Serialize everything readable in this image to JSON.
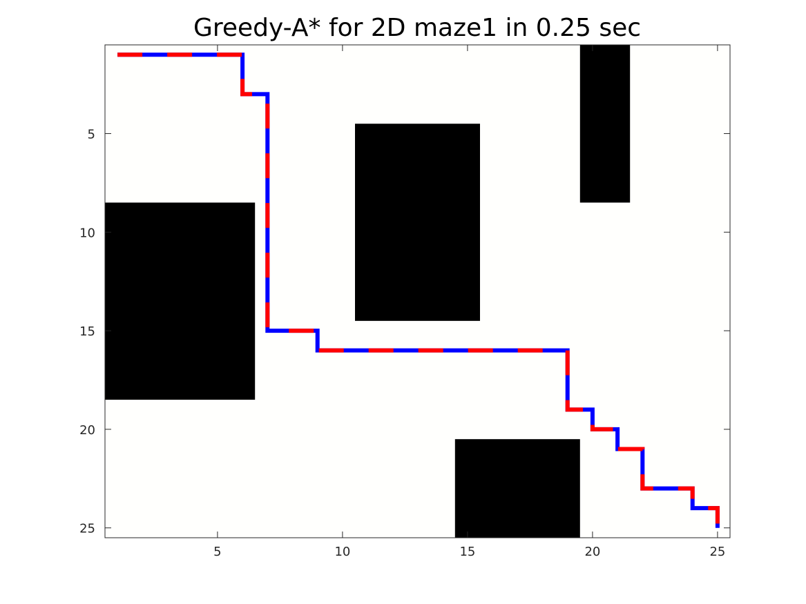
{
  "chart_data": {
    "type": "heatmap",
    "title": "Greedy-A* for 2D maze1 in 0.25 sec",
    "xlabel": "",
    "ylabel": "",
    "xlim": [
      0.5,
      25.5
    ],
    "ylim": [
      0.5,
      25.5
    ],
    "y_reversed": true,
    "grid": false,
    "xticks": [
      5,
      10,
      15,
      20,
      25
    ],
    "yticks": [
      5,
      10,
      15,
      20,
      25
    ],
    "background_color": "#fffffd",
    "obstacle_color": "#000000",
    "obstacles": [
      {
        "x_from": 1,
        "x_to": 6,
        "y_from": 9,
        "y_to": 18
      },
      {
        "x_from": 11,
        "x_to": 15,
        "y_from": 5,
        "y_to": 14
      },
      {
        "x_from": 20,
        "x_to": 21,
        "y_from": 1,
        "y_to": 8
      },
      {
        "x_from": 15,
        "x_to": 19,
        "y_from": 21,
        "y_to": 25
      }
    ],
    "path": {
      "style": "dashed",
      "colors": [
        "#0000ff",
        "#ff0000"
      ],
      "points": [
        [
          1,
          1
        ],
        [
          6,
          1
        ],
        [
          6,
          3
        ],
        [
          7,
          3
        ],
        [
          7,
          15
        ],
        [
          9,
          15
        ],
        [
          9,
          16
        ],
        [
          19,
          16
        ],
        [
          19,
          19
        ],
        [
          20,
          19
        ],
        [
          20,
          20
        ],
        [
          21,
          20
        ],
        [
          21,
          21
        ],
        [
          22,
          21
        ],
        [
          22,
          23
        ],
        [
          24,
          23
        ],
        [
          24,
          24
        ],
        [
          25,
          24
        ],
        [
          25,
          25
        ]
      ]
    }
  }
}
